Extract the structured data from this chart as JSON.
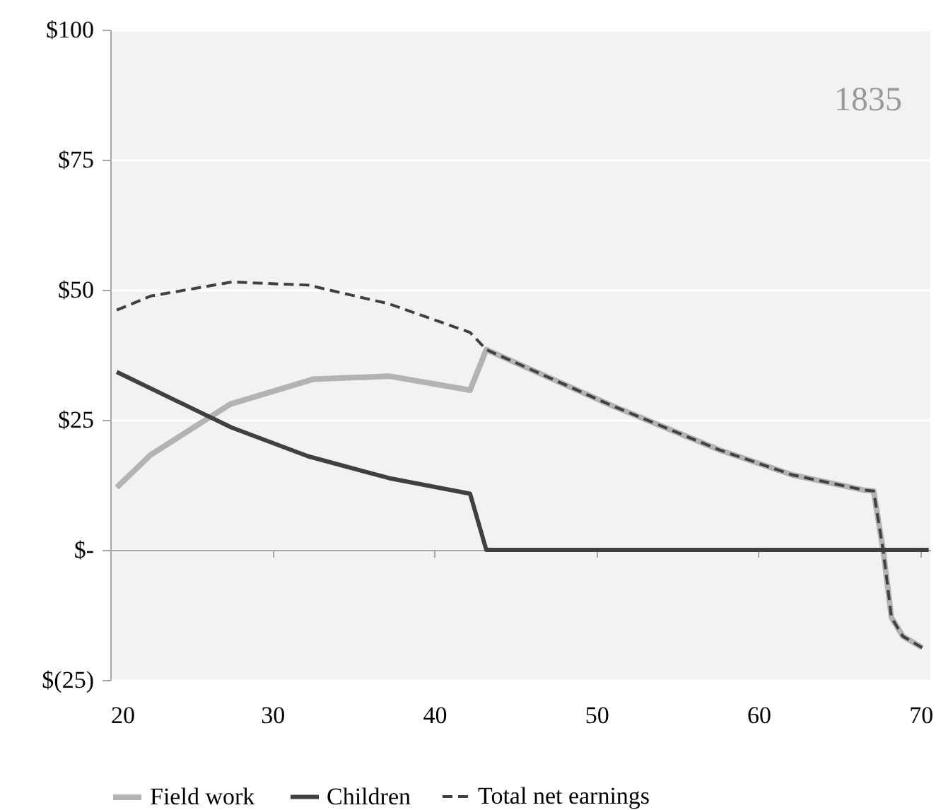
{
  "chart_data": {
    "type": "line",
    "annotations": [
      "1835"
    ],
    "xlim": [
      20,
      70.6
    ],
    "xticks": [
      20,
      30,
      40,
      50,
      60,
      70
    ],
    "ylim": [
      -25,
      100
    ],
    "yticks": [
      {
        "value": -25,
        "label": "$(25)"
      },
      {
        "value": 0,
        "label": "$-"
      },
      {
        "value": 25,
        "label": "$25"
      },
      {
        "value": 50,
        "label": "$50"
      },
      {
        "value": 75,
        "label": "$75"
      },
      {
        "value": 100,
        "label": "$100"
      }
    ],
    "grid": "y",
    "legend": "bottom",
    "marker": "none",
    "series": [
      {
        "name": "Field work",
        "color": "#b3b3b3",
        "line_style": "solid",
        "x": [
          20.4,
          22.5,
          27.4,
          32.5,
          37.2,
          42.2,
          43.2,
          50.9,
          57.6,
          62.1,
          66.5,
          67.1,
          67.7,
          68.2,
          68.9,
          70.1
        ],
        "values": [
          12,
          18.3,
          28,
          32.8,
          33.4,
          30.7,
          38.5,
          27.8,
          19.2,
          14.4,
          11.5,
          11.3,
          -0.3,
          -13,
          -16.6,
          -18.8
        ]
      },
      {
        "name": "Children",
        "color": "#404040",
        "line_style": "solid",
        "x": [
          20.4,
          27.5,
          32.2,
          37.2,
          42.2,
          43.2,
          70.5
        ],
        "values": [
          34.2,
          23.5,
          18,
          13.8,
          10.8,
          0,
          0
        ]
      },
      {
        "name": "Total net earnings",
        "color": "#404040",
        "line_style": "dashed",
        "x": [
          20.4,
          22.5,
          27.5,
          32.2,
          37.2,
          42.2,
          43.2,
          50.9,
          57.6,
          62.1,
          66.5,
          67.1,
          67.7,
          68.2,
          68.9,
          70.1
        ],
        "values": [
          46.1,
          48.8,
          51.5,
          50.9,
          47.3,
          41.8,
          38.5,
          27.8,
          19.2,
          14.4,
          11.5,
          11.3,
          -0.3,
          -13,
          -16.6,
          -18.8
        ]
      }
    ]
  }
}
